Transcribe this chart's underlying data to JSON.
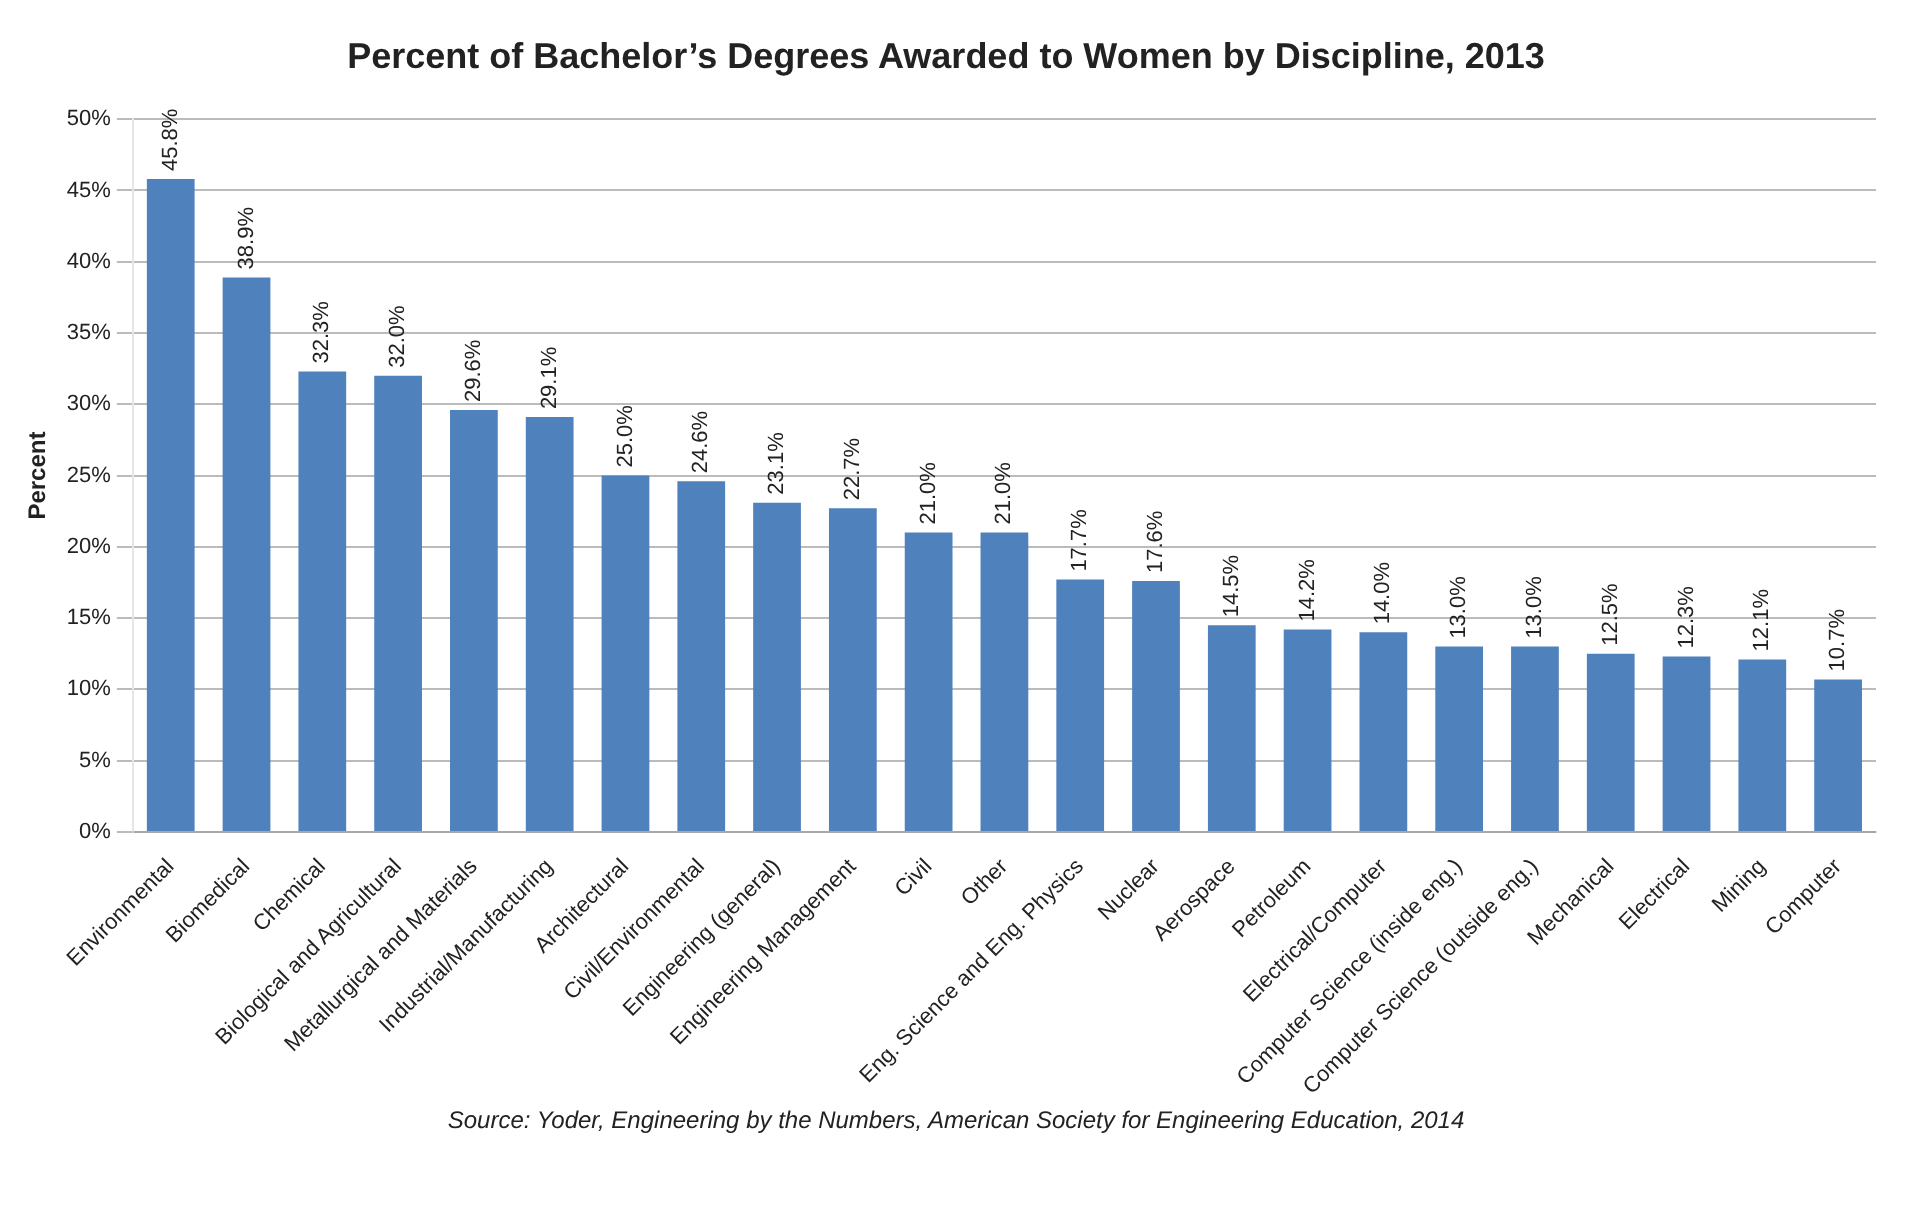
{
  "chart_data": {
    "type": "bar",
    "title": "Percent of Bachelor’s Degrees Awarded to Women by Discipline, 2013",
    "ylabel": "Percent",
    "categories": [
      "Environmental",
      "Biomedical",
      "Chemical",
      "Biological and Agricultural",
      "Metallurgical and Materials",
      "Industrial/Manufacturing",
      "Architectural",
      "Civil/Environmental",
      "Engineering (general)",
      "Engineering Management",
      "Civil",
      "Other",
      "Eng. Science and Eng. Physics",
      "Nuclear",
      "Aerospace",
      "Petroleum",
      "Electrical/Computer",
      "Computer Science (inside eng.)",
      "Computer Science (outside eng.)",
      "Mechanical",
      "Electrical",
      "Mining",
      "Computer"
    ],
    "values": [
      45.8,
      38.9,
      32.3,
      32.0,
      29.6,
      29.1,
      25.0,
      24.6,
      23.1,
      22.7,
      21.0,
      21.0,
      17.7,
      17.6,
      14.5,
      14.2,
      14.0,
      13.0,
      13.0,
      12.5,
      12.3,
      12.1,
      10.7
    ],
    "value_labels": [
      "45.8%",
      "38.9%",
      "32.3%",
      "32.0%",
      "29.6%",
      "29.1%",
      "25.0%",
      "24.6%",
      "23.1%",
      "22.7%",
      "21.0%",
      "21.0%",
      "17.7%",
      "17.6%",
      "14.5%",
      "14.2%",
      "14.0%",
      "13.0%",
      "13.0%",
      "12.5%",
      "12.3%",
      "12.1%",
      "10.7%"
    ],
    "color": "#4f81bd",
    "ylim": [
      0,
      50
    ],
    "yticks": [
      {
        "value": 0,
        "label": "0%"
      },
      {
        "value": 5,
        "label": "5%"
      },
      {
        "value": 10,
        "label": "10%"
      },
      {
        "value": 15,
        "label": "15%"
      },
      {
        "value": 20,
        "label": "20%"
      },
      {
        "value": 25,
        "label": "25%"
      },
      {
        "value": 30,
        "label": "30%"
      },
      {
        "value": 35,
        "label": "35%"
      },
      {
        "value": 40,
        "label": "40%"
      },
      {
        "value": 45,
        "label": "45%"
      },
      {
        "value": 50,
        "label": "50%"
      }
    ],
    "grid": "y",
    "annotations": [
      "Source: Yoder, Engineering by the Numbers, American Society for Engineering Education, 2014"
    ]
  }
}
